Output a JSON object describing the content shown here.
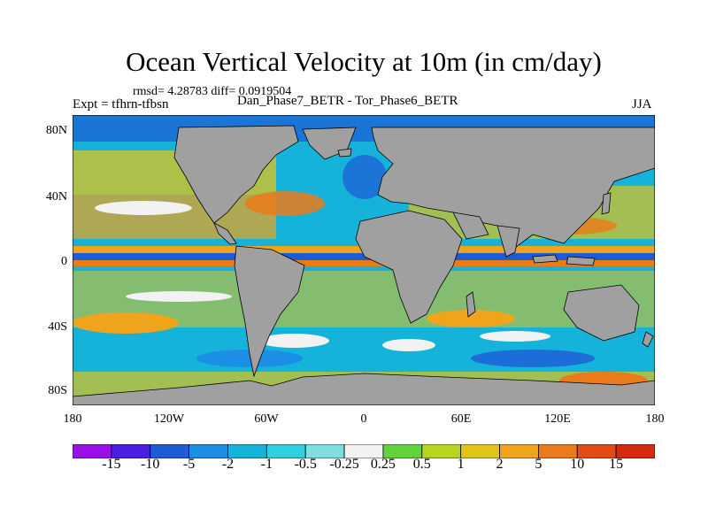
{
  "header": {
    "title": "Ocean Vertical Velocity at 10m (in cm/day)",
    "stats": "rmsd= 4.28783 diff= 0.0919504",
    "expt": "Expt = tfhrn-tfbsn",
    "cases": "Dan_Phase7_BETR - Tor_Phase6_BETR",
    "season": "JJA"
  },
  "axes": {
    "lat_labels": [
      "80N",
      "40N",
      "0",
      "40S",
      "80S"
    ],
    "lon_labels": [
      "180",
      "120W",
      "60W",
      "0",
      "60E",
      "120E",
      "180"
    ]
  },
  "colorbar": {
    "labels": [
      "-15",
      "-10",
      "-5",
      "-2",
      "-1",
      "-0.5",
      "-0.25",
      "0.25",
      "0.5",
      "1",
      "2",
      "5",
      "10",
      "15"
    ],
    "colors": [
      "#9b10e8",
      "#4a1fe0",
      "#1e5bd6",
      "#1b8ee6",
      "#15b3d9",
      "#30cfe0",
      "#7fdfe0",
      "#f2f2f2",
      "#62d23a",
      "#b7d51e",
      "#e0c41a",
      "#f0a41c",
      "#ea7a1a",
      "#e24c14",
      "#d42a10"
    ]
  },
  "colors": {
    "land": "#a0a0a0",
    "coast": "#000000"
  }
}
